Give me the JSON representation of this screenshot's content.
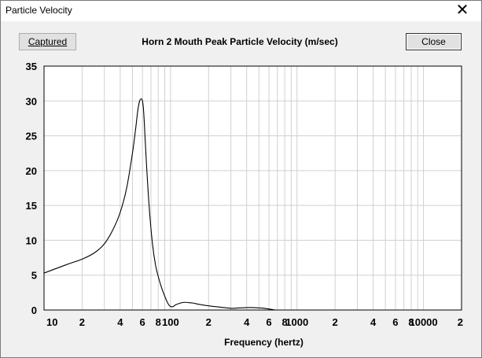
{
  "window": {
    "title": "Particle Velocity",
    "close_glyph": "✕"
  },
  "buttons": {
    "captured_label": "Captured",
    "close_label": "Close"
  },
  "chart_data": {
    "type": "line",
    "title": "Horn 2 Mouth Peak Particle Velocity (m/sec)",
    "xlabel": "Frequency (hertz)",
    "ylabel": "",
    "xscale": "log",
    "xlim": [
      10,
      20000
    ],
    "ylim": [
      0,
      35
    ],
    "yticks": [
      0,
      5,
      10,
      15,
      20,
      25,
      30,
      35
    ],
    "xtick_labels": [
      {
        "x": 10,
        "label": "10"
      },
      {
        "x": 20,
        "label": "2"
      },
      {
        "x": 40,
        "label": "4"
      },
      {
        "x": 60,
        "label": "6"
      },
      {
        "x": 80,
        "label": "8"
      },
      {
        "x": 100,
        "label": "100"
      },
      {
        "x": 200,
        "label": "2"
      },
      {
        "x": 400,
        "label": "4"
      },
      {
        "x": 600,
        "label": "6"
      },
      {
        "x": 800,
        "label": "8"
      },
      {
        "x": 1000,
        "label": "1000"
      },
      {
        "x": 2000,
        "label": "2"
      },
      {
        "x": 4000,
        "label": "4"
      },
      {
        "x": 6000,
        "label": "6"
      },
      {
        "x": 8000,
        "label": "8"
      },
      {
        "x": 10000,
        "label": "10000"
      },
      {
        "x": 20000,
        "label": "2"
      }
    ],
    "grid": true,
    "line_color": "#000000",
    "series": [
      {
        "x": [
          10,
          15,
          20,
          25,
          30,
          35,
          40,
          45,
          50,
          53,
          55,
          57,
          59,
          60,
          61,
          62,
          63,
          65,
          68,
          72,
          76,
          80,
          85,
          90,
          95,
          100,
          105,
          110,
          120,
          130,
          140,
          150,
          170,
          200,
          250,
          300,
          350,
          400,
          450,
          500,
          550,
          600,
          650,
          700,
          1000,
          2000,
          5000,
          10000,
          20000
        ],
        "y": [
          5.3,
          6.5,
          7.3,
          8.2,
          9.5,
          11.5,
          14.0,
          17.5,
          22.5,
          26.0,
          28.5,
          30.0,
          30.3,
          30.0,
          29.0,
          27.0,
          24.5,
          20.0,
          14.5,
          9.5,
          6.5,
          4.8,
          3.2,
          2.0,
          1.0,
          0.5,
          0.5,
          0.75,
          1.0,
          1.1,
          1.05,
          1.0,
          0.8,
          0.6,
          0.4,
          0.25,
          0.3,
          0.35,
          0.35,
          0.3,
          0.25,
          0.15,
          0.05,
          0.0,
          0.0,
          0.0,
          0.0,
          0.0,
          0.0
        ]
      }
    ]
  }
}
